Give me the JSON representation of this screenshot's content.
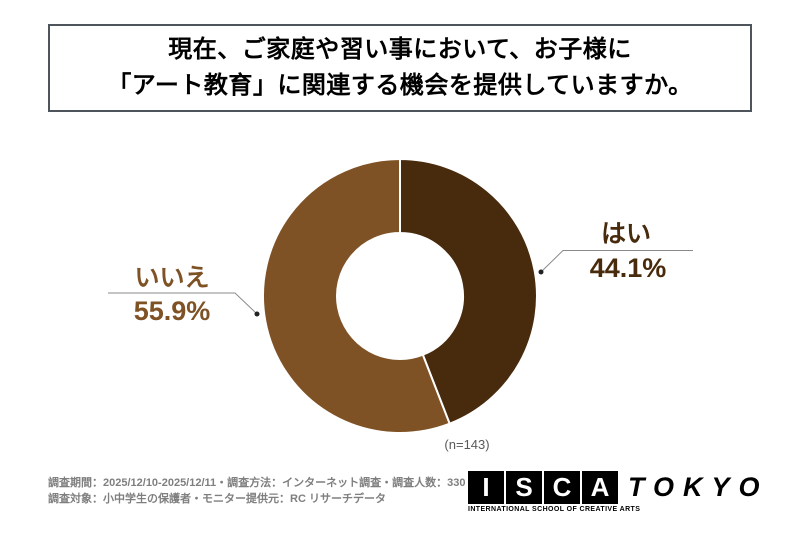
{
  "title": {
    "line1": "現在、ご家庭や習い事において、お子様に",
    "line2": "「アート教育」に関連する機会を提供していますか。"
  },
  "chart_data": {
    "type": "pie",
    "donut": true,
    "title": "現在、ご家庭や習い事において、お子様に「アート教育」に関連する機会を提供していますか。",
    "sample_label": "(n=143)",
    "sample_size": 143,
    "start_angle_deg": 0,
    "direction": "clockwise",
    "segments": [
      {
        "label": "はい",
        "value": 44.1,
        "pct_label": "44.1%",
        "color": "#482a0d"
      },
      {
        "label": "いいえ",
        "value": 55.9,
        "pct_label": "55.9%",
        "color": "#7f5226"
      }
    ]
  },
  "footer": {
    "line1": "調査期間：2025/12/10-2025/12/11・調査方法：インターネット調査・調査人数：330 名",
    "line2": "調査対象：小中学生の保護者・モニター提供元：RC リサーチデータ"
  },
  "logo": {
    "letters": [
      "I",
      "S",
      "C",
      "A"
    ],
    "wordmark": "TOKYO",
    "subtitle": "INTERNATIONAL SCHOOL OF CREATIVE ARTS"
  },
  "colors": {
    "title_border": "#4d545c",
    "leader_line": "#8a8a8a",
    "footnote_text": "#7f7f7f",
    "sample_text": "#595959"
  }
}
